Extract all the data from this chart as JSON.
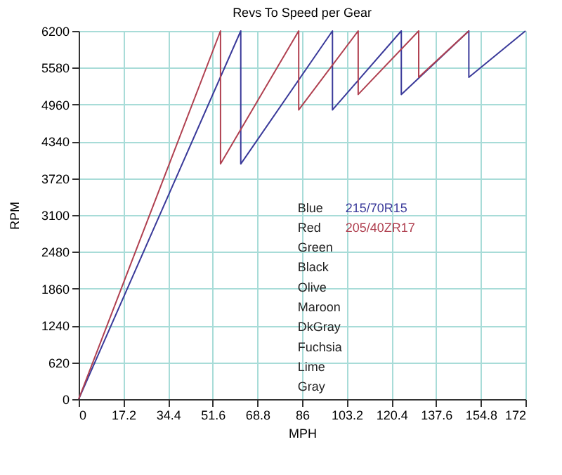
{
  "chart_data": {
    "type": "line",
    "title": "Revs To Speed per Gear",
    "xlabel": "MPH",
    "ylabel": "RPM",
    "series": [
      {
        "name": "215/70R15",
        "color": "#3a3a9a",
        "x": [
          0,
          62.4,
          62.4,
          97.7,
          97.7,
          124.2,
          124.2,
          150.2,
          150.2,
          172
        ],
        "values": [
          0,
          6200,
          3960,
          6200,
          4870,
          6200,
          5130,
          6200,
          5420,
          6200
        ]
      },
      {
        "name": "205/40ZR17",
        "color": "#b04050",
        "x": [
          0,
          54.6,
          54.6,
          84.7,
          84.7,
          107.6,
          107.6,
          130.9,
          130.9,
          150.2
        ],
        "values": [
          0,
          6200,
          3960,
          6200,
          4870,
          6200,
          5130,
          6200,
          5420,
          6200
        ]
      }
    ],
    "annotations": [
      "Blue",
      "Red",
      "Green",
      "Black",
      "Olive",
      "Maroon",
      "DkGray",
      "Fuchsia",
      "Lime",
      "Gray"
    ],
    "xlim": [
      0,
      172
    ],
    "xticks": [
      0,
      17.2,
      34.4,
      51.6,
      68.8,
      86,
      103.2,
      120.4,
      137.6,
      154.8,
      172
    ],
    "ylim": [
      0,
      6200
    ],
    "yticks": [
      0,
      620,
      1240,
      1860,
      2480,
      3100,
      3720,
      4340,
      4960,
      5580,
      6200
    ],
    "grid": true,
    "legend": "bottom",
    "marker": "none",
    "line_style": "solid"
  }
}
